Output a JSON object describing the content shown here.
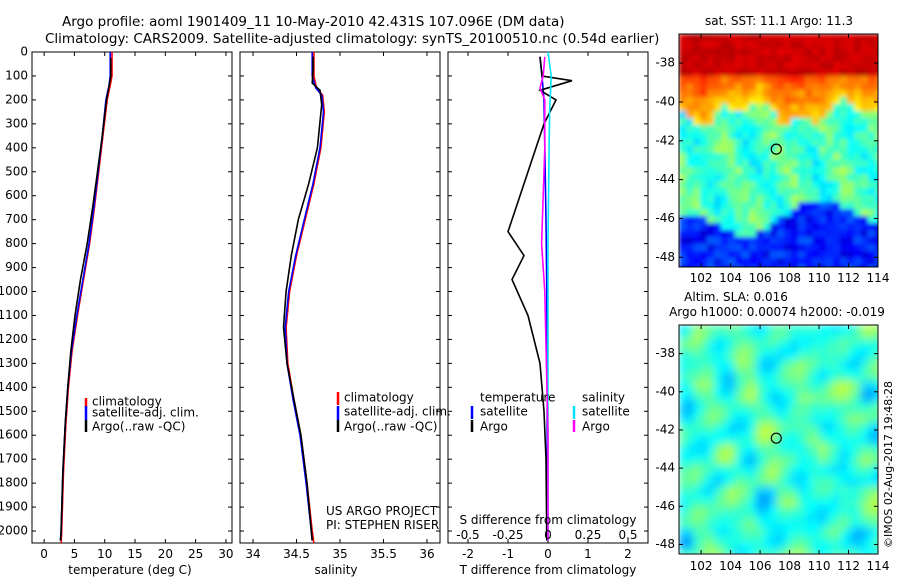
{
  "header": {
    "line1": "Argo profile: aoml 1901409_11 10-May-2010 42.431S 107.096E (DM data)",
    "line2": "Climatology: CARS2009. Satellite-adjusted climatology: synTS_20100510.nc (0.54d earlier)"
  },
  "credit": "©IMOS 02-Aug-2017 19:48:28",
  "project": {
    "line1": "US ARGO PROJECT",
    "line2": "PI: STEPHEN RISER"
  },
  "colors": {
    "climatology": "#ff0000",
    "satellite": "#0000ff",
    "argo": "#000000",
    "sal_satellite": "#00e5ff",
    "sal_argo": "#ff00ff"
  },
  "chart_data": [
    {
      "type": "line",
      "id": "temperature",
      "xlabel": "temperature (deg C)",
      "xlim": [
        -2,
        31
      ],
      "xticks": [
        0,
        5,
        10,
        15,
        20,
        25,
        30
      ],
      "ylim": [
        0,
        2050
      ],
      "yticks": [
        0,
        100,
        200,
        300,
        400,
        500,
        600,
        700,
        800,
        900,
        1000,
        1100,
        1200,
        1300,
        1400,
        1500,
        1600,
        1700,
        1800,
        1900,
        2000
      ],
      "legend": [
        "climatology",
        "satellite-adj. clim.",
        "Argo(..raw -QC)"
      ],
      "series": [
        {
          "name": "climatology",
          "color": "#ff0000",
          "points": [
            [
              11.2,
              0
            ],
            [
              11.2,
              100
            ],
            [
              10.9,
              140
            ],
            [
              10.4,
              200
            ],
            [
              9.7,
              350
            ],
            [
              9.0,
              500
            ],
            [
              8.3,
              650
            ],
            [
              7.5,
              800
            ],
            [
              6.5,
              950
            ],
            [
              5.5,
              1100
            ],
            [
              4.6,
              1250
            ],
            [
              4.0,
              1400
            ],
            [
              3.6,
              1550
            ],
            [
              3.2,
              1750
            ],
            [
              2.9,
              2000
            ],
            [
              2.8,
              2050
            ]
          ]
        },
        {
          "name": "satellite-adj. clim.",
          "color": "#0000ff",
          "points": [
            [
              10.9,
              0
            ],
            [
              10.9,
              100
            ],
            [
              10.7,
              140
            ],
            [
              10.2,
              200
            ],
            [
              9.6,
              350
            ],
            [
              8.9,
              500
            ],
            [
              8.2,
              650
            ],
            [
              7.4,
              800
            ],
            [
              6.4,
              950
            ],
            [
              5.4,
              1100
            ],
            [
              4.5,
              1250
            ],
            [
              3.9,
              1400
            ],
            [
              3.5,
              1550
            ],
            [
              3.1,
              1750
            ],
            [
              2.8,
              2000
            ],
            [
              2.7,
              2040
            ]
          ]
        },
        {
          "name": "Argo(..raw -QC)",
          "color": "#000000",
          "points": [
            [
              11.0,
              25
            ],
            [
              11.0,
              100
            ],
            [
              10.8,
              130
            ],
            [
              10.3,
              200
            ],
            [
              9.6,
              350
            ],
            [
              8.8,
              500
            ],
            [
              8.0,
              650
            ],
            [
              7.1,
              800
            ],
            [
              6.0,
              950
            ],
            [
              5.1,
              1100
            ],
            [
              4.4,
              1250
            ],
            [
              3.9,
              1400
            ],
            [
              3.5,
              1550
            ],
            [
              3.1,
              1750
            ],
            [
              2.8,
              2000
            ],
            [
              2.7,
              2040
            ]
          ]
        }
      ]
    },
    {
      "type": "line",
      "id": "salinity",
      "xlabel": "salinity",
      "xlim": [
        33.85,
        36.15
      ],
      "xticks": [
        34,
        34.5,
        35,
        35.5,
        36
      ],
      "ylim": [
        0,
        2050
      ],
      "legend": [
        "climatology",
        "satellite-adj. clim.",
        "Argo(..raw -QC)"
      ],
      "series": [
        {
          "name": "climatology",
          "color": "#ff0000",
          "points": [
            [
              34.7,
              0
            ],
            [
              34.7,
              100
            ],
            [
              34.73,
              150
            ],
            [
              34.8,
              180
            ],
            [
              34.82,
              250
            ],
            [
              34.78,
              400
            ],
            [
              34.7,
              550
            ],
            [
              34.6,
              700
            ],
            [
              34.5,
              850
            ],
            [
              34.42,
              1000
            ],
            [
              34.38,
              1150
            ],
            [
              34.4,
              1300
            ],
            [
              34.47,
              1450
            ],
            [
              34.55,
              1600
            ],
            [
              34.62,
              1800
            ],
            [
              34.68,
              2000
            ],
            [
              34.7,
              2050
            ]
          ]
        },
        {
          "name": "satellite-adj. clim.",
          "color": "#0000ff",
          "points": [
            [
              34.68,
              0
            ],
            [
              34.68,
              100
            ],
            [
              34.72,
              150
            ],
            [
              34.79,
              180
            ],
            [
              34.81,
              250
            ],
            [
              34.77,
              400
            ],
            [
              34.69,
              550
            ],
            [
              34.59,
              700
            ],
            [
              34.49,
              850
            ],
            [
              34.41,
              1000
            ],
            [
              34.37,
              1150
            ],
            [
              34.39,
              1300
            ],
            [
              34.46,
              1450
            ],
            [
              34.54,
              1600
            ],
            [
              34.61,
              1800
            ],
            [
              34.67,
              2000
            ],
            [
              34.68,
              2040
            ]
          ]
        },
        {
          "name": "Argo(..raw -QC)",
          "color": "#000000",
          "points": [
            [
              34.69,
              20
            ],
            [
              34.69,
              80
            ],
            [
              34.68,
              130
            ],
            [
              34.77,
              160
            ],
            [
              34.79,
              220
            ],
            [
              34.74,
              400
            ],
            [
              34.64,
              550
            ],
            [
              34.52,
              700
            ],
            [
              34.44,
              850
            ],
            [
              34.38,
              1000
            ],
            [
              34.35,
              1150
            ],
            [
              34.39,
              1300
            ],
            [
              34.47,
              1450
            ],
            [
              34.55,
              1600
            ],
            [
              34.62,
              1800
            ],
            [
              34.67,
              2000
            ],
            [
              34.68,
              2040
            ]
          ]
        }
      ]
    },
    {
      "type": "line",
      "id": "difference",
      "xlabel": "T difference from climatology",
      "xlabel_top": "S difference from climatology",
      "xlim": [
        -2.5,
        2.5
      ],
      "xticks": [
        -2,
        -1,
        0,
        1,
        2
      ],
      "xticks_sal": [
        "-0.5",
        "-0.25",
        "0",
        "0.25",
        "0.5"
      ],
      "ylim": [
        0,
        2050
      ],
      "legend_temperature_title": "temperature",
      "legend_salinity_title": "salinity",
      "legend": [
        "satellite",
        "Argo",
        "satellite",
        "Argo"
      ],
      "series": [
        {
          "name": "satellite",
          "group": "temperature",
          "color": "#0000ff",
          "points": [
            [
              -0.2,
              20
            ],
            [
              -0.15,
              100
            ],
            [
              -0.1,
              200
            ],
            [
              -0.08,
              400
            ],
            [
              -0.05,
              700
            ],
            [
              -0.03,
              1000
            ],
            [
              -0.02,
              1400
            ],
            [
              -0.02,
              2040
            ]
          ]
        },
        {
          "name": "Argo",
          "group": "temperature",
          "color": "#000000",
          "points": [
            [
              -0.2,
              20
            ],
            [
              -0.15,
              100
            ],
            [
              0.6,
              120
            ],
            [
              -0.2,
              160
            ],
            [
              0.2,
              200
            ],
            [
              -0.1,
              300
            ],
            [
              -0.4,
              450
            ],
            [
              -0.8,
              650
            ],
            [
              -1.0,
              750
            ],
            [
              -0.6,
              850
            ],
            [
              -0.9,
              950
            ],
            [
              -0.5,
              1100
            ],
            [
              -0.2,
              1300
            ],
            [
              -0.1,
              1500
            ],
            [
              -0.05,
              1700
            ],
            [
              -0.03,
              2040
            ]
          ]
        },
        {
          "name": "satellite",
          "group": "salinity",
          "color": "#00e5ff",
          "points": [
            [
              0.0,
              0
            ],
            [
              0.02,
              100
            ],
            [
              0.01,
              250
            ],
            [
              0.005,
              500
            ],
            [
              0.0,
              800
            ],
            [
              0.0,
              1200
            ],
            [
              0.0,
              2040
            ]
          ]
        },
        {
          "name": "Argo",
          "group": "salinity",
          "color": "#ff00ff",
          "points": [
            [
              -0.02,
              20
            ],
            [
              -0.03,
              100
            ],
            [
              -0.05,
              150
            ],
            [
              -0.02,
              200
            ],
            [
              -0.02,
              400
            ],
            [
              -0.03,
              600
            ],
            [
              -0.04,
              800
            ],
            [
              -0.02,
              1000
            ],
            [
              -0.01,
              1300
            ],
            [
              0.0,
              1600
            ],
            [
              0.0,
              2040
            ]
          ]
        }
      ]
    },
    {
      "type": "heatmap",
      "id": "sst-map",
      "title": "sat. SST: 11.1 Argo: 11.3",
      "xlim": [
        100.5,
        114
      ],
      "ylim": [
        -48.5,
        -36.5
      ],
      "xticks": [
        102,
        104,
        106,
        108,
        110,
        112,
        114
      ],
      "yticks": [
        -38,
        -40,
        -42,
        -44,
        -46,
        -48
      ],
      "float_position": [
        107.1,
        -42.43
      ]
    },
    {
      "type": "heatmap",
      "id": "sla-map",
      "title_line1": "Altim. SLA: 0.016",
      "title_line2": "Argo h1000: 0.00074 h2000: -0.019",
      "xlim": [
        100.5,
        114
      ],
      "ylim": [
        -48.5,
        -36.5
      ],
      "xticks": [
        102,
        104,
        106,
        108,
        110,
        112,
        114
      ],
      "yticks": [
        -38,
        -40,
        -42,
        -44,
        -46,
        -48
      ],
      "float_position": [
        107.1,
        -42.43
      ]
    }
  ]
}
